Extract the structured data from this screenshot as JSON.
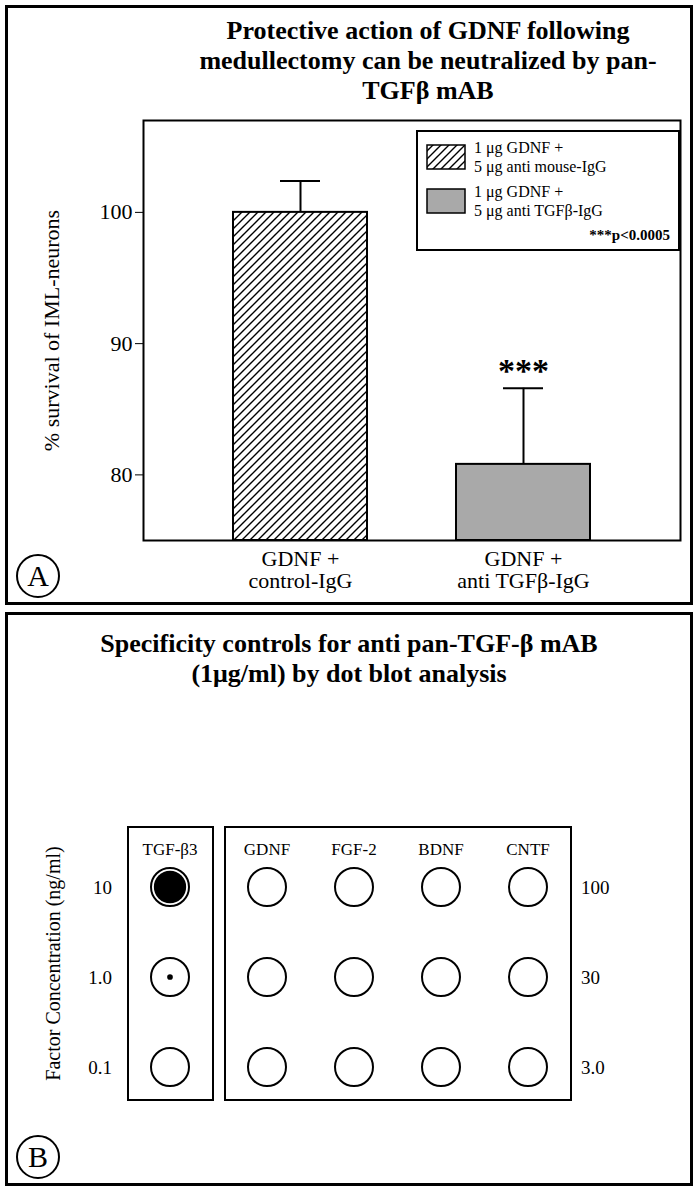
{
  "chart_data": {
    "type": "bar",
    "panel_label": "A",
    "title": "Protective action of GDNF following medullectomy can be neutralized by pan-TGFβ mAB",
    "y_label": "% survival of IML-neurons",
    "categories": [
      "GDNF +\ncontrol-IgG",
      "GDNF +\nanti TGFβ-IgG"
    ],
    "series": [
      {
        "name": "1 μg GDNF +\n5 μg anti mouse-IgG",
        "color": "#000000",
        "values": [
          100,
          null
        ],
        "errors": [
          2.4,
          null
        ]
      },
      {
        "name": "1 μg GDNF +\n5 μg anti TGFβ-IgG",
        "color": "#a9a9a9",
        "values": [
          null,
          80.8
        ],
        "errors": [
          null,
          5.8
        ]
      }
    ],
    "ylim": [
      75,
      107
    ],
    "yticks": [
      80,
      90,
      100
    ],
    "legend": "upper right",
    "legend_note": "***p<0.0005",
    "annotations": [
      {
        "text": "***",
        "category": "GDNF +\nanti TGFβ-IgG"
      }
    ]
  },
  "dot_blot": {
    "panel_label": "B",
    "title": "Specificity controls for anti pan-TGF-β mAB (1μg/ml) by dot blot analysis",
    "y_label": "Factor Concentration (ng/ml)",
    "groups": [
      {
        "factors": [
          "TGF-β3"
        ],
        "concentrations": [
          10,
          {
            "value": 1,
            "label": "1.0"
          },
          0.1
        ],
        "spot_size": [
          [
            0.85
          ],
          [
            0.15
          ],
          [
            0
          ]
        ]
      },
      {
        "factors": [
          "GDNF",
          "FGF-2",
          "BDNF",
          "CNTF"
        ],
        "concentrations": [
          100,
          30,
          {
            "value": 3,
            "label": "3.0"
          }
        ],
        "spot_size": [
          [
            0,
            0,
            0,
            0
          ],
          [
            0,
            0,
            0,
            0
          ],
          [
            0,
            0,
            0,
            0
          ]
        ]
      }
    ]
  }
}
